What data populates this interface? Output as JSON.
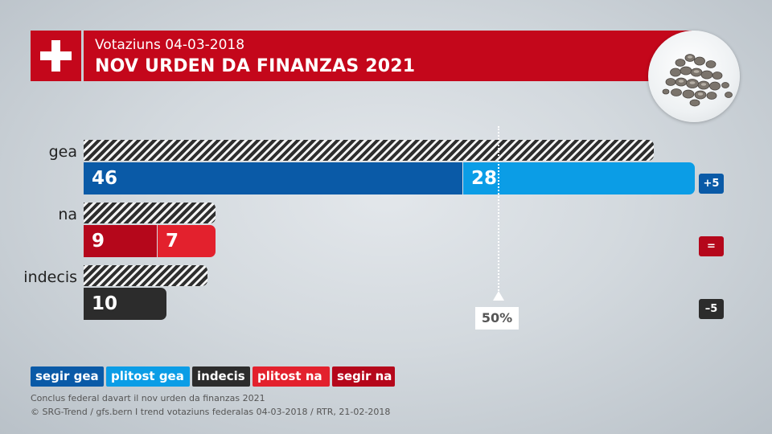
{
  "header": {
    "subtitle": "Votaziuns 04-03-2018",
    "title": "NOV URDEN DA FINANZAS 2021"
  },
  "colors": {
    "segir_gea": "#0a5aa7",
    "plitost_gea": "#0b9de6",
    "indecis": "#2c2c2c",
    "plitost_na": "#e3212d",
    "segir_na": "#b5071b",
    "flag": "#c4071b"
  },
  "chart_data": {
    "type": "bar",
    "categories": [
      "gea",
      "na",
      "indecis"
    ],
    "series": [
      {
        "name": "segir gea",
        "values": [
          46,
          null,
          null
        ]
      },
      {
        "name": "plitost gea",
        "values": [
          28,
          null,
          null
        ]
      },
      {
        "name": "segir na",
        "values": [
          null,
          9,
          null
        ]
      },
      {
        "name": "plitost na",
        "values": [
          null,
          7,
          null
        ]
      },
      {
        "name": "indecis",
        "values": [
          null,
          null,
          10
        ]
      }
    ],
    "previous_totals": [
      69,
      16,
      15
    ],
    "changes": [
      "+5",
      "=",
      "–5"
    ],
    "reference_line": {
      "value": 50,
      "label": "50%"
    },
    "xlim": [
      0,
      100
    ]
  },
  "legend": [
    "segir gea",
    "plitost gea",
    "indecis",
    "plitost na",
    "segir na"
  ],
  "footer": {
    "line1": "Conclus federal davart il nov urden da finanzas 2021",
    "line2": "© SRG-Trend / gfs.bern  I  trend votaziuns federalas 04-03-2018 / RTR, 21-02-2018"
  }
}
